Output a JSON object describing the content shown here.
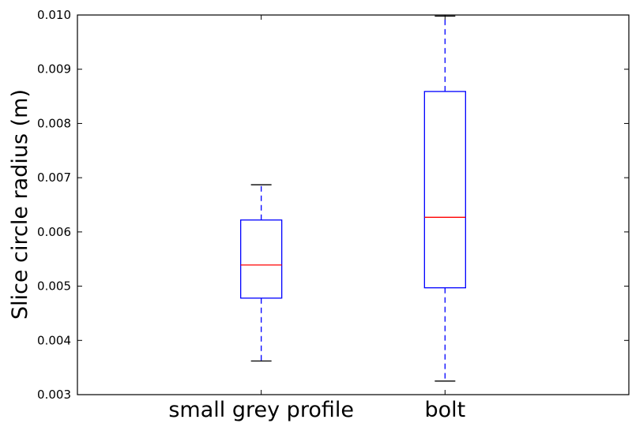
{
  "chart_data": {
    "type": "box",
    "title": "",
    "xlabel": "",
    "ylabel": "Slice circle radius (m)",
    "ylim": [
      0.003,
      0.01
    ],
    "yticks": [
      "0.003",
      "0.004",
      "0.005",
      "0.006",
      "0.007",
      "0.008",
      "0.009",
      "0.010"
    ],
    "grid": false,
    "categories": [
      "small grey profile",
      "bolt"
    ],
    "boxes": [
      {
        "whisker_low": 0.00362,
        "q1": 0.00478,
        "median": 0.00539,
        "q3": 0.00622,
        "whisker_high": 0.00687
      },
      {
        "whisker_low": 0.00325,
        "q1": 0.00497,
        "median": 0.00627,
        "q3": 0.00859,
        "whisker_high": 0.00998
      }
    ],
    "colors": {
      "box": "#0000ff",
      "median": "#ff0000",
      "whisker": "#0000ff",
      "cap": "#000000",
      "frame": "#000000"
    }
  }
}
